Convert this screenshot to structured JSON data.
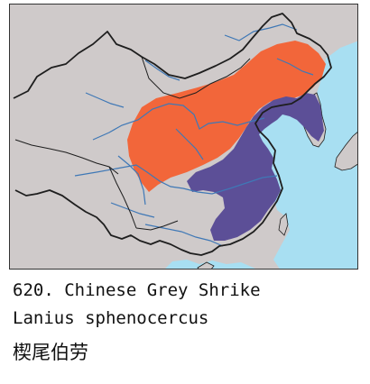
{
  "map": {
    "colors": {
      "land": "#cfcaca",
      "sea": "#a8dff2",
      "river": "#3f78b6",
      "border": "#1e1e1e",
      "breeding_range": "#f2663a",
      "wintering_range": "#5c4f97"
    },
    "legend": []
  },
  "caption": {
    "number_and_name": "620. Chinese Grey Shrike",
    "scientific_name": "Lanius sphenocercus",
    "chinese_name": "楔尾伯劳"
  }
}
